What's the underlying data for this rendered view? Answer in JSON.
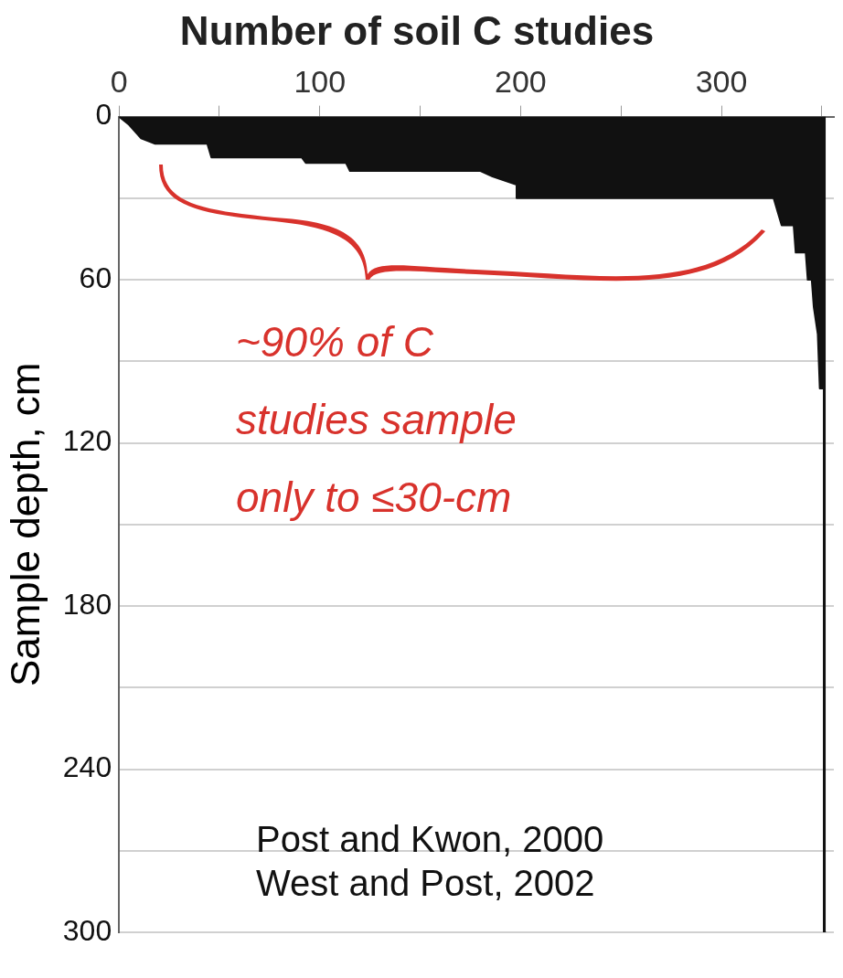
{
  "chart_data": {
    "type": "area",
    "title": "Number of soil C studies",
    "ylabel": "Sample depth, cm",
    "x": [
      0,
      5,
      11,
      18,
      44,
      46,
      91,
      93,
      113,
      115,
      180,
      186,
      194,
      198,
      198,
      326,
      328,
      330,
      336,
      337,
      342,
      343,
      345,
      346,
      348,
      349,
      351,
      351,
      352
    ],
    "series": [
      {
        "color": "#111111",
        "values": [
          0,
          3,
          8,
          10,
          10,
          15,
          15,
          17,
          17,
          20,
          20,
          22,
          24,
          25,
          30,
          30,
          35,
          40,
          40,
          50,
          50,
          60,
          60,
          70,
          80,
          100,
          100,
          300,
          300
        ]
      }
    ],
    "xlim": [
      0,
      356
    ],
    "xticks": [
      0,
      {
        "value": 50,
        "label": null
      },
      100,
      {
        "value": 150,
        "label": null
      },
      200,
      {
        "value": 250,
        "label": null
      },
      300,
      {
        "value": 350,
        "label": null
      }
    ],
    "ylim": [
      300,
      0
    ],
    "yticks": [
      0,
      {
        "value": 30,
        "label": null
      },
      60,
      {
        "value": 90,
        "label": null
      },
      120,
      {
        "value": 150,
        "label": null
      },
      180,
      {
        "value": 210,
        "label": null
      },
      240,
      {
        "value": 270,
        "label": null
      },
      300
    ],
    "grid": "y",
    "legend": false,
    "annotations": [
      "~90% of C studies sample only to ≤30-cm",
      "Post and Kwon, 2000",
      "West and Post, 2002"
    ]
  }
}
